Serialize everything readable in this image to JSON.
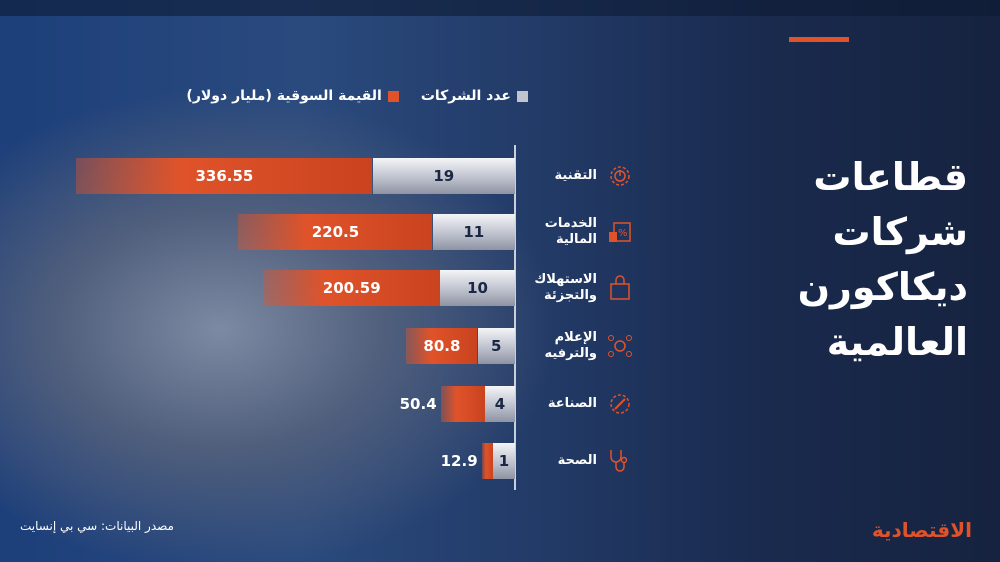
{
  "title_lines": [
    "قطاعات شركات",
    "ديكاكورن",
    "العالمية"
  ],
  "legend": {
    "count": "عدد الشركات",
    "value": "القيمة السوقية (مليار دولار)"
  },
  "source": "مصدر البيانات: سي بي إنسايت",
  "logo": "الاقتصادية",
  "colors": {
    "value": "#e0532a",
    "count": "#c0c4cf",
    "accent": "#e0532a"
  },
  "chart_data": {
    "type": "bar",
    "orientation": "horizontal-stacked",
    "categories": [
      "التقنية",
      "الخدمات المالية",
      "الاستهلاك والتجزئة",
      "الإعلام والترفيه",
      "الصناعة",
      "الصحة"
    ],
    "icons": [
      "gear-power-icon",
      "finance-percent-icon",
      "shopping-bag-icon",
      "network-people-icon",
      "gear-wrench-icon",
      "stethoscope-icon"
    ],
    "series": [
      {
        "name": "عدد الشركات",
        "values": [
          19,
          11,
          10,
          5,
          4,
          1
        ]
      },
      {
        "name": "القيمة السوقية (مليار دولار)",
        "values": [
          336.55,
          220.5,
          200.59,
          80.8,
          50.4,
          12.9
        ]
      }
    ],
    "labels": {
      "count": [
        "19",
        "11",
        "10",
        "5",
        "4",
        "1"
      ],
      "value": [
        "336.55",
        "220.5",
        "200.59",
        "80.8",
        "50.4",
        "12.9"
      ]
    }
  }
}
